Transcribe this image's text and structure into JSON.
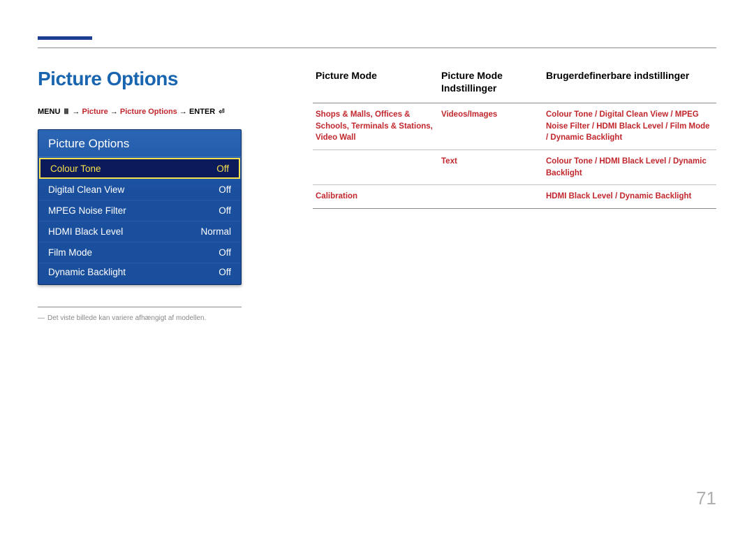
{
  "page": {
    "title": "Picture Options",
    "page_number": "71",
    "footnote": "Det viste billede kan variere afhængigt af modellen."
  },
  "breadcrumb": {
    "menu_label": "MENU",
    "menu_icon": "Ⅲ",
    "arrow": "→",
    "part1": "Picture",
    "part2": "Picture Options",
    "enter_label": "ENTER",
    "enter_icon": "⏎"
  },
  "menu": {
    "header": "Picture Options",
    "rows": [
      {
        "label": "Colour Tone",
        "value": "Off",
        "selected": true
      },
      {
        "label": "Digital Clean View",
        "value": "Off",
        "selected": false
      },
      {
        "label": "MPEG Noise Filter",
        "value": "Off",
        "selected": false
      },
      {
        "label": "HDMI Black Level",
        "value": "Normal",
        "selected": false
      },
      {
        "label": "Film Mode",
        "value": "Off",
        "selected": false
      },
      {
        "label": "Dynamic Backlight",
        "value": "Off",
        "selected": false
      }
    ]
  },
  "table": {
    "headers": {
      "col1": "Picture Mode",
      "col2": "Picture Mode Indstillinger",
      "col3": "Brugerdefinerbare indstillinger"
    },
    "rows": [
      {
        "mode": "Shops & Malls, Offices & Schools, Terminals & Stations, Video Wall",
        "setting": "Videos/Images",
        "config": [
          "Colour Tone",
          "Digital Clean View",
          "MPEG Noise Filter",
          "HDMI Black Level",
          "Film Mode",
          "Dynamic Backlight"
        ]
      },
      {
        "mode": "",
        "setting": "Text",
        "config": [
          "Colour Tone",
          "HDMI Black Level",
          "Dynamic Backlight"
        ]
      },
      {
        "mode": "Calibration",
        "setting": "",
        "config": [
          "HDMI Black Level",
          "Dynamic Backlight"
        ]
      }
    ]
  }
}
